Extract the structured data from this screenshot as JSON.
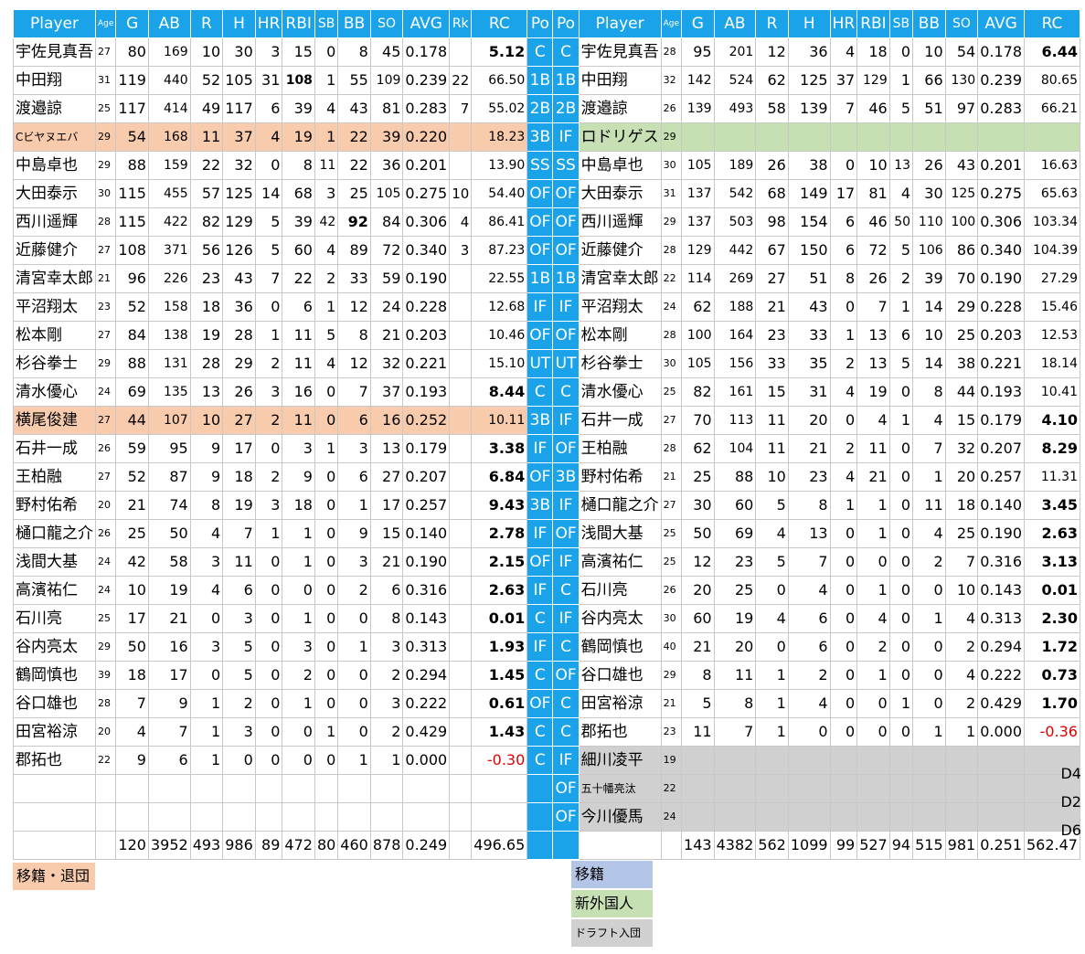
{
  "headers": {
    "left": [
      "Player",
      "Age",
      "G",
      "AB",
      "R",
      "H",
      "HR",
      "RBI",
      "SB",
      "BB",
      "SO",
      "AVG",
      "Rk",
      "RC"
    ],
    "po": [
      "Po",
      "Po"
    ],
    "right": [
      "Player",
      "Age",
      "G",
      "AB",
      "R",
      "H",
      "HR",
      "RBI",
      "SB",
      "BB",
      "SO",
      "AVG",
      "RC"
    ]
  },
  "rows": [
    {
      "L": [
        "宇佐見真吾",
        "27",
        "80",
        "169",
        "10",
        "30",
        "3",
        "15",
        "0",
        "8",
        "45",
        "0.178",
        "",
        "5.12"
      ],
      "P": [
        "C",
        "C"
      ],
      "R": [
        "宇佐見真吾",
        "28",
        "95",
        "201",
        "12",
        "36",
        "4",
        "18",
        "0",
        "10",
        "54",
        "0.178",
        "6.44"
      ]
    },
    {
      "L": [
        "中田翔",
        "31",
        "119",
        "440",
        "52",
        "105",
        "31",
        "108",
        "1",
        "55",
        "109",
        "0.239",
        "22",
        "66.50"
      ],
      "P": [
        "1B",
        "1B"
      ],
      "R": [
        "中田翔",
        "32",
        "142",
        "524",
        "62",
        "125",
        "37",
        "129",
        "1",
        "66",
        "130",
        "0.239",
        "80.65"
      ]
    },
    {
      "L": [
        "渡邉諒",
        "25",
        "117",
        "414",
        "49",
        "117",
        "6",
        "39",
        "4",
        "43",
        "81",
        "0.283",
        "7",
        "55.02"
      ],
      "P": [
        "2B",
        "2B"
      ],
      "R": [
        "渡邉諒",
        "26",
        "139",
        "493",
        "58",
        "139",
        "7",
        "46",
        "5",
        "51",
        "97",
        "0.283",
        "66.21"
      ]
    },
    {
      "L": [
        "Cビヤヌエバ",
        "29",
        "54",
        "168",
        "11",
        "37",
        "4",
        "19",
        "1",
        "22",
        "39",
        "0.220",
        "",
        "18.23"
      ],
      "P": [
        "3B",
        "IF"
      ],
      "R": [
        "ロドリゲス",
        "29",
        "",
        "",
        "",
        "",
        "",
        "",
        "",
        "",
        "",
        "",
        ""
      ]
    },
    {
      "L": [
        "中島卓也",
        "29",
        "88",
        "159",
        "22",
        "32",
        "0",
        "8",
        "11",
        "22",
        "36",
        "0.201",
        "",
        "13.90"
      ],
      "P": [
        "SS",
        "SS"
      ],
      "R": [
        "中島卓也",
        "30",
        "105",
        "189",
        "26",
        "38",
        "0",
        "10",
        "13",
        "26",
        "43",
        "0.201",
        "16.63"
      ]
    },
    {
      "L": [
        "大田泰示",
        "30",
        "115",
        "455",
        "57",
        "125",
        "14",
        "68",
        "3",
        "25",
        "105",
        "0.275",
        "10",
        "54.40"
      ],
      "P": [
        "OF",
        "OF"
      ],
      "R": [
        "大田泰示",
        "31",
        "137",
        "542",
        "68",
        "149",
        "17",
        "81",
        "4",
        "30",
        "125",
        "0.275",
        "65.63"
      ]
    },
    {
      "L": [
        "西川遥輝",
        "28",
        "115",
        "422",
        "82",
        "129",
        "5",
        "39",
        "42",
        "92",
        "84",
        "0.306",
        "4",
        "86.41"
      ],
      "P": [
        "OF",
        "OF"
      ],
      "R": [
        "西川遥輝",
        "29",
        "137",
        "503",
        "98",
        "154",
        "6",
        "46",
        "50",
        "110",
        "100",
        "0.306",
        "103.34"
      ]
    },
    {
      "L": [
        "近藤健介",
        "27",
        "108",
        "371",
        "56",
        "126",
        "5",
        "60",
        "4",
        "89",
        "72",
        "0.340",
        "3",
        "87.23"
      ],
      "P": [
        "OF",
        "OF"
      ],
      "R": [
        "近藤健介",
        "28",
        "129",
        "442",
        "67",
        "150",
        "6",
        "72",
        "5",
        "106",
        "86",
        "0.340",
        "104.39"
      ]
    },
    {
      "L": [
        "清宮幸太郎",
        "21",
        "96",
        "226",
        "23",
        "43",
        "7",
        "22",
        "2",
        "33",
        "59",
        "0.190",
        "",
        "22.55"
      ],
      "P": [
        "1B",
        "1B"
      ],
      "R": [
        "清宮幸太郎",
        "22",
        "114",
        "269",
        "27",
        "51",
        "8",
        "26",
        "2",
        "39",
        "70",
        "0.190",
        "27.29"
      ]
    },
    {
      "L": [
        "平沼翔太",
        "23",
        "52",
        "158",
        "18",
        "36",
        "0",
        "6",
        "1",
        "12",
        "24",
        "0.228",
        "",
        "12.68"
      ],
      "P": [
        "IF",
        "IF"
      ],
      "R": [
        "平沼翔太",
        "24",
        "62",
        "188",
        "21",
        "43",
        "0",
        "7",
        "1",
        "14",
        "29",
        "0.228",
        "15.46"
      ]
    },
    {
      "L": [
        "松本剛",
        "27",
        "84",
        "138",
        "19",
        "28",
        "1",
        "11",
        "5",
        "8",
        "21",
        "0.203",
        "",
        "10.46"
      ],
      "P": [
        "OF",
        "OF"
      ],
      "R": [
        "松本剛",
        "28",
        "100",
        "164",
        "23",
        "33",
        "1",
        "13",
        "6",
        "10",
        "25",
        "0.203",
        "12.53"
      ]
    },
    {
      "L": [
        "杉谷拳士",
        "29",
        "88",
        "131",
        "28",
        "29",
        "2",
        "11",
        "4",
        "12",
        "32",
        "0.221",
        "",
        "15.10"
      ],
      "P": [
        "UT",
        "UT"
      ],
      "R": [
        "杉谷拳士",
        "30",
        "105",
        "156",
        "33",
        "35",
        "2",
        "13",
        "5",
        "14",
        "38",
        "0.221",
        "18.14"
      ]
    },
    {
      "L": [
        "清水優心",
        "24",
        "69",
        "135",
        "13",
        "26",
        "3",
        "16",
        "0",
        "7",
        "37",
        "0.193",
        "",
        "8.44"
      ],
      "P": [
        "C",
        "C"
      ],
      "R": [
        "清水優心",
        "25",
        "82",
        "161",
        "15",
        "31",
        "4",
        "19",
        "0",
        "8",
        "44",
        "0.193",
        "10.41"
      ]
    },
    {
      "L": [
        "横尾俊建",
        "27",
        "44",
        "107",
        "10",
        "27",
        "2",
        "11",
        "0",
        "6",
        "16",
        "0.252",
        "",
        "10.11"
      ],
      "P": [
        "3B",
        "IF"
      ],
      "R": [
        "石井一成",
        "27",
        "70",
        "113",
        "11",
        "20",
        "0",
        "4",
        "1",
        "4",
        "15",
        "0.179",
        "4.10"
      ]
    },
    {
      "L": [
        "石井一成",
        "26",
        "59",
        "95",
        "9",
        "17",
        "0",
        "3",
        "1",
        "3",
        "13",
        "0.179",
        "",
        "3.38"
      ],
      "P": [
        "IF",
        "OF"
      ],
      "R": [
        "王柏融",
        "28",
        "62",
        "104",
        "11",
        "21",
        "2",
        "11",
        "0",
        "7",
        "32",
        "0.207",
        "8.29"
      ]
    },
    {
      "L": [
        "王柏融",
        "27",
        "52",
        "87",
        "9",
        "18",
        "2",
        "9",
        "0",
        "6",
        "27",
        "0.207",
        "",
        "6.84"
      ],
      "P": [
        "OF",
        "3B"
      ],
      "R": [
        "野村佑希",
        "21",
        "25",
        "88",
        "10",
        "23",
        "4",
        "21",
        "0",
        "1",
        "20",
        "0.257",
        "11.31"
      ]
    },
    {
      "L": [
        "野村佑希",
        "20",
        "21",
        "74",
        "8",
        "19",
        "3",
        "18",
        "0",
        "1",
        "17",
        "0.257",
        "",
        "9.43"
      ],
      "P": [
        "3B",
        "IF"
      ],
      "R": [
        "樋口龍之介",
        "27",
        "30",
        "60",
        "5",
        "8",
        "1",
        "1",
        "0",
        "11",
        "18",
        "0.140",
        "3.45"
      ]
    },
    {
      "L": [
        "樋口龍之介",
        "26",
        "25",
        "50",
        "4",
        "7",
        "1",
        "1",
        "0",
        "9",
        "15",
        "0.140",
        "",
        "2.78"
      ],
      "P": [
        "IF",
        "OF"
      ],
      "R": [
        "浅間大基",
        "25",
        "50",
        "69",
        "4",
        "13",
        "0",
        "1",
        "0",
        "4",
        "25",
        "0.190",
        "2.63"
      ]
    },
    {
      "L": [
        "浅間大基",
        "24",
        "42",
        "58",
        "3",
        "11",
        "0",
        "1",
        "0",
        "3",
        "21",
        "0.190",
        "",
        "2.15"
      ],
      "P": [
        "OF",
        "IF"
      ],
      "R": [
        "高濱祐仁",
        "25",
        "12",
        "23",
        "5",
        "7",
        "0",
        "0",
        "0",
        "2",
        "7",
        "0.316",
        "3.13"
      ]
    },
    {
      "L": [
        "高濱祐仁",
        "24",
        "10",
        "19",
        "4",
        "6",
        "0",
        "0",
        "0",
        "2",
        "6",
        "0.316",
        "",
        "2.63"
      ],
      "P": [
        "IF",
        "C"
      ],
      "R": [
        "石川亮",
        "26",
        "20",
        "25",
        "0",
        "4",
        "0",
        "1",
        "0",
        "0",
        "10",
        "0.143",
        "0.01"
      ]
    },
    {
      "L": [
        "石川亮",
        "25",
        "17",
        "21",
        "0",
        "3",
        "0",
        "1",
        "0",
        "0",
        "8",
        "0.143",
        "",
        "0.01"
      ],
      "P": [
        "C",
        "IF"
      ],
      "R": [
        "谷内亮太",
        "30",
        "60",
        "19",
        "4",
        "6",
        "0",
        "4",
        "0",
        "1",
        "4",
        "0.313",
        "2.30"
      ]
    },
    {
      "L": [
        "谷内亮太",
        "29",
        "50",
        "16",
        "3",
        "5",
        "0",
        "3",
        "0",
        "1",
        "3",
        "0.313",
        "",
        "1.93"
      ],
      "P": [
        "IF",
        "C"
      ],
      "R": [
        "鶴岡慎也",
        "40",
        "21",
        "20",
        "0",
        "6",
        "0",
        "2",
        "0",
        "0",
        "2",
        "0.294",
        "1.72"
      ]
    },
    {
      "L": [
        "鶴岡慎也",
        "39",
        "18",
        "17",
        "0",
        "5",
        "0",
        "2",
        "0",
        "0",
        "2",
        "0.294",
        "",
        "1.45"
      ],
      "P": [
        "C",
        "OF"
      ],
      "R": [
        "谷口雄也",
        "29",
        "8",
        "11",
        "1",
        "2",
        "0",
        "1",
        "0",
        "0",
        "4",
        "0.222",
        "0.73"
      ]
    },
    {
      "L": [
        "谷口雄也",
        "28",
        "7",
        "9",
        "1",
        "2",
        "0",
        "1",
        "0",
        "0",
        "3",
        "0.222",
        "",
        "0.61"
      ],
      "P": [
        "OF",
        "C"
      ],
      "R": [
        "田宮裕涼",
        "21",
        "5",
        "8",
        "1",
        "4",
        "0",
        "0",
        "1",
        "0",
        "2",
        "0.429",
        "1.70"
      ]
    },
    {
      "L": [
        "田宮裕涼",
        "20",
        "4",
        "7",
        "1",
        "3",
        "0",
        "0",
        "1",
        "0",
        "2",
        "0.429",
        "",
        "1.43"
      ],
      "P": [
        "C",
        "C"
      ],
      "R": [
        "郡拓也",
        "23",
        "11",
        "7",
        "1",
        "0",
        "0",
        "0",
        "0",
        "1",
        "1",
        "0.000",
        "-0.36"
      ]
    },
    {
      "L": [
        "郡拓也",
        "22",
        "9",
        "6",
        "1",
        "0",
        "0",
        "0",
        "0",
        "1",
        "1",
        "0.000",
        "",
        "-0.30"
      ],
      "P": [
        "C",
        "IF"
      ],
      "R": [
        "細川凌平",
        "19",
        "",
        "",
        "",
        "",
        "",
        "",
        "",
        "",
        "",
        "",
        ""
      ],
      "draft": "D4"
    },
    {
      "L": [
        "",
        "",
        "",
        "",
        "",
        "",
        "",
        "",
        "",
        "",
        "",
        "",
        "",
        ""
      ],
      "P": [
        "",
        "OF"
      ],
      "R": [
        "五十幡亮汰",
        "22",
        "",
        "",
        "",
        "",
        "",
        "",
        "",
        "",
        "",
        "",
        ""
      ],
      "draft": "D2"
    },
    {
      "L": [
        "",
        "",
        "",
        "",
        "",
        "",
        "",
        "",
        "",
        "",
        "",
        "",
        "",
        ""
      ],
      "P": [
        "",
        "OF"
      ],
      "R": [
        "今川優馬",
        "24",
        "",
        "",
        "",
        "",
        "",
        "",
        "",
        "",
        "",
        "",
        ""
      ],
      "draft": "D6"
    }
  ],
  "totals": {
    "left": [
      "",
      "",
      "120",
      "3952",
      "493",
      "986",
      "89",
      "472",
      "80",
      "460",
      "878",
      "0.249",
      "",
      "496.65"
    ],
    "right": [
      "",
      "",
      "143",
      "4382",
      "562",
      "1099",
      "99",
      "527",
      "94",
      "515",
      "981",
      "0.251",
      "562.47"
    ]
  },
  "legend": {
    "left": "移籍・退団",
    "right": [
      "移籍",
      "新外国人",
      "ドラフト入団"
    ]
  },
  "colors": {
    "header_blue": "#1aa3e8",
    "left_highlight": "#f8cbad",
    "new_foreign": "#c6e0b4",
    "transfer": "#b4c6e7",
    "draft": "#d0d0d0",
    "negative": "#e00000"
  }
}
